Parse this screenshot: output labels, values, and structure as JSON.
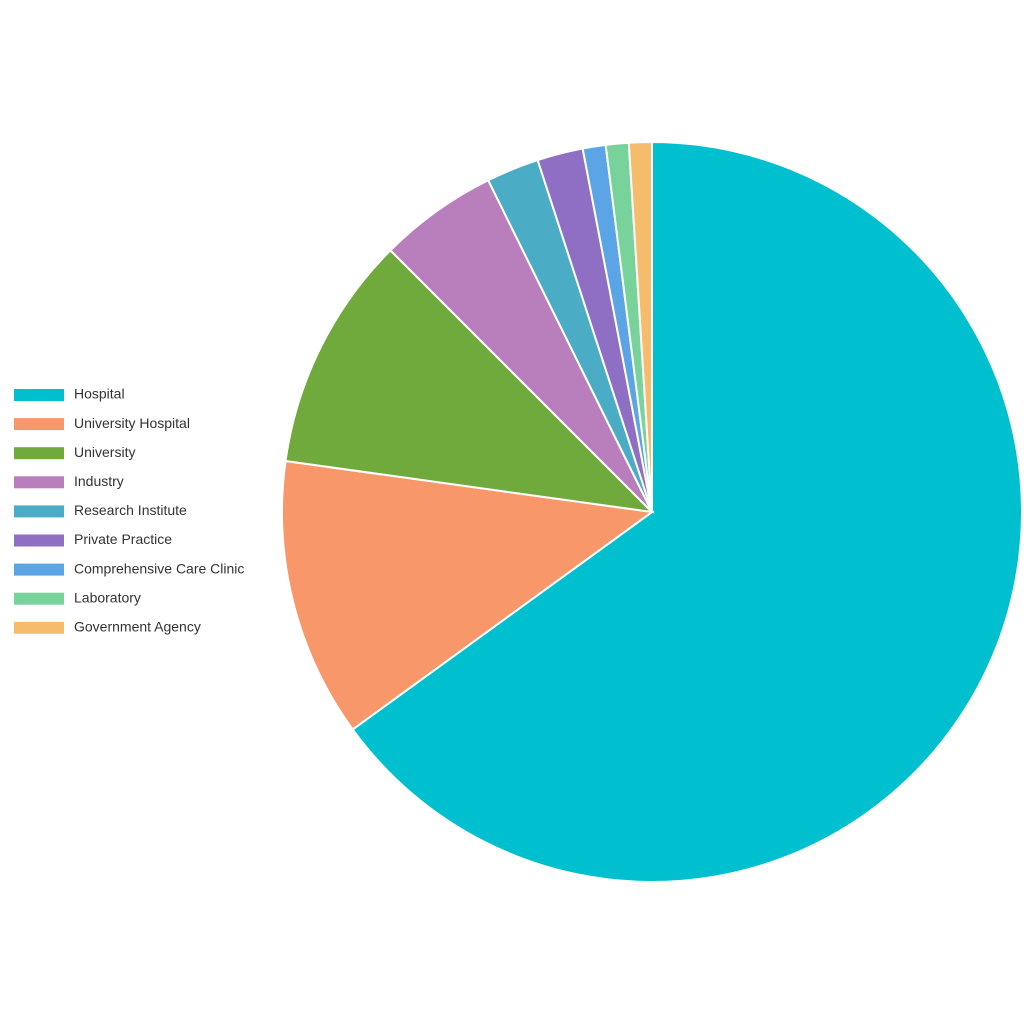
{
  "chart_data": {
    "type": "pie",
    "categories": [
      "Hospital",
      "University Hospital",
      "University",
      "Industry",
      "Research Institute",
      "Private Practice",
      "Comprehensive Care Clinic",
      "Laboratory",
      "Government Agency"
    ],
    "values": [
      65,
      12.2,
      10.3,
      5.2,
      2.3,
      2,
      1,
      1,
      1
    ],
    "colors": [
      "#00bfcf",
      "#f7976a",
      "#70aa3c",
      "#b97fbd",
      "#4bacc6",
      "#8e6fc4",
      "#5ba4e5",
      "#78d39a",
      "#f5bd6b"
    ],
    "legend": "left"
  }
}
